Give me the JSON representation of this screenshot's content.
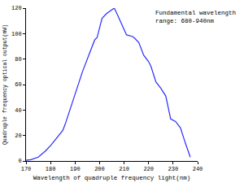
{
  "chart_data": {
    "type": "line",
    "x_label": "Wavelength of quadruple frequency light(nm)",
    "y_label": "Quadruple frequency optical output(mW)",
    "annotation": "Fundamental wavelength\nrange: 680-940nm",
    "x": [
      170,
      172,
      175,
      178,
      180,
      185,
      186,
      190,
      193,
      196,
      198,
      199,
      201,
      203,
      206,
      207,
      209,
      211,
      213,
      214,
      216,
      218,
      220,
      221,
      223,
      225,
      227,
      229,
      231,
      233,
      235,
      237
    ],
    "values": [
      0.5,
      1,
      3,
      8,
      12,
      24,
      29,
      52,
      70,
      85,
      95,
      97,
      112,
      116,
      120,
      116,
      108,
      99,
      98,
      97,
      93,
      83,
      78,
      74,
      62,
      57,
      51,
      33,
      31,
      26,
      14,
      3
    ],
    "color": "#2a2aff",
    "xlim": [
      170,
      240
    ],
    "xticks": [
      170,
      180,
      190,
      200,
      210,
      220,
      230,
      240
    ],
    "ylim": [
      0,
      120
    ],
    "yticks": [
      0,
      20,
      40,
      60,
      80,
      100,
      120
    ],
    "grid": false
  }
}
